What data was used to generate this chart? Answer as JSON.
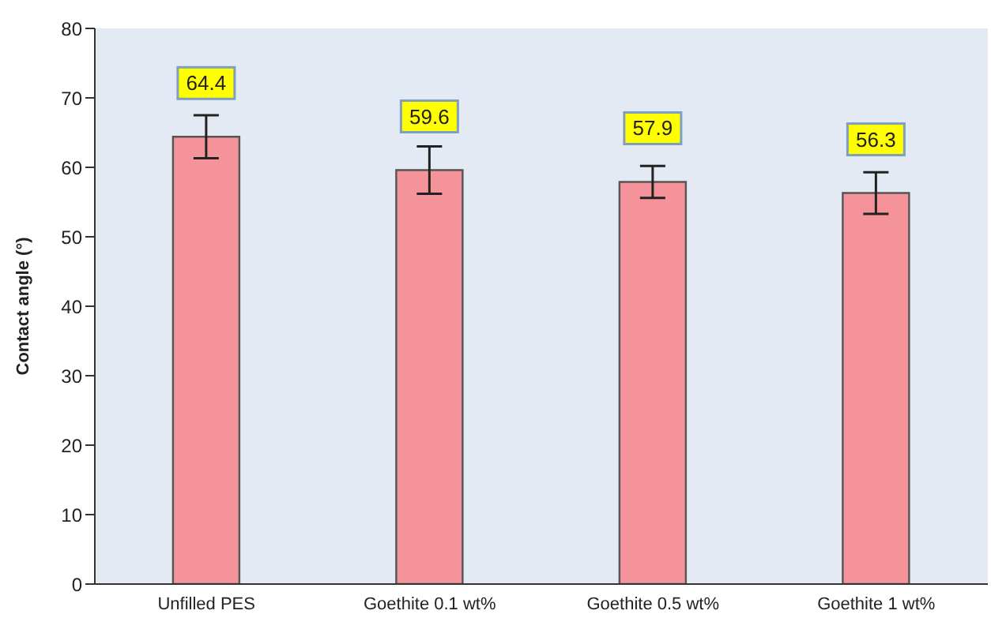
{
  "chart_data": {
    "type": "bar",
    "ylabel": "Contact angle (°)",
    "categories": [
      "Unfilled PES",
      "Goethite 0.1 wt%",
      "Goethite 0.5 wt%",
      "Goethite 1 wt%"
    ],
    "values": [
      64.4,
      59.6,
      57.9,
      56.3
    ],
    "errors": [
      3.1,
      3.4,
      2.3,
      3.0
    ],
    "color": "#f4939a",
    "ylim": [
      0,
      80
    ],
    "yticks": [
      0,
      10,
      20,
      30,
      40,
      50,
      60,
      70,
      80
    ],
    "grid": false,
    "data_labels": true
  }
}
